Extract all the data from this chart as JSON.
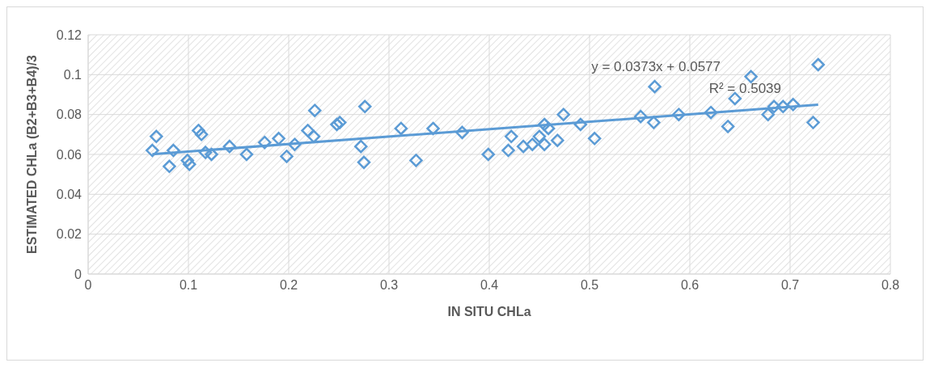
{
  "chart_data": {
    "type": "scatter",
    "xlabel": "IN SITU CHLa",
    "ylabel": "ESTIMATED CHLa  (B2+B3+B4)/3",
    "xlim": [
      0,
      0.8
    ],
    "xticks": [
      0,
      0.1,
      0.2,
      0.3,
      0.4,
      0.5,
      0.6,
      0.7,
      0.8
    ],
    "ylim": [
      0,
      0.12
    ],
    "yticks": [
      0,
      0.02,
      0.04,
      0.06,
      0.08,
      0.1,
      0.12
    ],
    "grid": true,
    "marker": "diamond",
    "annotations": [
      "y = 0.0373x + 0.0577",
      "R² = 0.5039"
    ],
    "series": [
      {
        "color": "#5b9bd5",
        "x": [
          0.064,
          0.068,
          0.081,
          0.085,
          0.099,
          0.101,
          0.11,
          0.113,
          0.117,
          0.123,
          0.141,
          0.158,
          0.176,
          0.19,
          0.198,
          0.206,
          0.219,
          0.225,
          0.226,
          0.248,
          0.251,
          0.272,
          0.275,
          0.276,
          0.312,
          0.327,
          0.344,
          0.373,
          0.399,
          0.419,
          0.422,
          0.434,
          0.443,
          0.45,
          0.455,
          0.455,
          0.459,
          0.468,
          0.474,
          0.491,
          0.505,
          0.551,
          0.564,
          0.565,
          0.589,
          0.621,
          0.638,
          0.645,
          0.661,
          0.678,
          0.684,
          0.693,
          0.703,
          0.723,
          0.728
        ],
        "values": [
          0.062,
          0.069,
          0.054,
          0.062,
          0.057,
          0.055,
          0.072,
          0.07,
          0.061,
          0.06,
          0.064,
          0.06,
          0.066,
          0.068,
          0.059,
          0.065,
          0.072,
          0.069,
          0.082,
          0.075,
          0.076,
          0.064,
          0.056,
          0.084,
          0.073,
          0.057,
          0.073,
          0.071,
          0.06,
          0.062,
          0.069,
          0.064,
          0.065,
          0.069,
          0.075,
          0.065,
          0.073,
          0.067,
          0.08,
          0.075,
          0.068,
          0.079,
          0.076,
          0.094,
          0.08,
          0.081,
          0.074,
          0.088,
          0.099,
          0.08,
          0.084,
          0.084,
          0.085,
          0.076,
          0.105
        ]
      },
      {
        "type": "line",
        "marker": "none",
        "color": "#5b9bd5",
        "x": [
          0.064,
          0.728
        ],
        "values": [
          0.0601,
          0.0849
        ]
      }
    ]
  }
}
